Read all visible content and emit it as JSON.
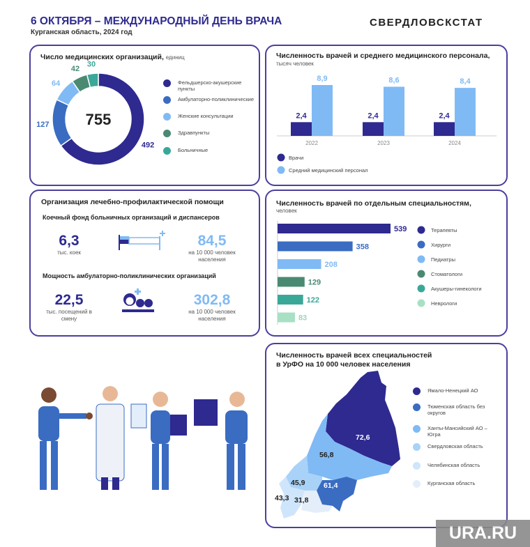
{
  "header": {
    "title": "6 ОКТЯБРЯ – МЕЖДУНАРОДНЫЙ ДЕНЬ ВРАЧА",
    "subtitle": "Курганская область, 2024 год",
    "logo": "СВЕРДЛОВСКСТАТ"
  },
  "orgs": {
    "title": "Число медицинских организаций,",
    "unit": "единиц",
    "total": "755",
    "chart_data": {
      "type": "pie",
      "title": "Число медицинских организаций, единиц",
      "categories": [
        "Фельдшерско-акушерские пункты",
        "Амбулаторно-поликлинические",
        "Женские консультации",
        "Здравпункты",
        "Больничные"
      ],
      "values": [
        492,
        127,
        64,
        42,
        30
      ],
      "labels": [
        "492",
        "127",
        "64",
        "42",
        "30"
      ],
      "colors": [
        "#2e2a8f",
        "#3a6cc2",
        "#80baf5",
        "#4a8a72",
        "#3aa898"
      ]
    }
  },
  "staff": {
    "title": "Численность врачей и среднего медицинского персонала,",
    "unit": "тысяч человек",
    "chart_data": {
      "type": "bar",
      "categories": [
        "2022",
        "2023",
        "2024"
      ],
      "series": [
        {
          "name": "Врачи",
          "values": [
            2.4,
            2.4,
            2.4
          ],
          "labels": [
            "2,4",
            "2,4",
            "2,4"
          ],
          "color": "#2e2a8f"
        },
        {
          "name": "Средний медицинский персонал",
          "values": [
            8.9,
            8.6,
            8.4
          ],
          "labels": [
            "8,9",
            "8,6",
            "8,4"
          ],
          "color": "#80baf5"
        }
      ]
    }
  },
  "care": {
    "title": "Организация лечебно-профилактической помощи",
    "beds_title": "Коечный фонд больничных организаций и диспансеров",
    "beds_value": "6,3",
    "beds_caption": "тыс. коек",
    "beds_rate": "84,5",
    "beds_rate_caption": "на 10 000 человек населения",
    "amb_title": "Мощность амбулаторно-поликлинических организаций",
    "amb_value": "22,5",
    "amb_caption": "тыс. посещений в смену",
    "amb_rate": "302,8",
    "amb_rate_caption": "на 10 000 человек населения"
  },
  "spec": {
    "title": "Численность врачей по отдельным специальностям,",
    "unit": "человек",
    "chart_data": {
      "type": "bar",
      "orientation": "horizontal",
      "categories": [
        "Терапевты",
        "Хирурги",
        "Педиатры",
        "Стоматологи",
        "Акушеры-гинекологи",
        "Неврологи"
      ],
      "values": [
        539,
        358,
        208,
        129,
        122,
        83
      ],
      "colors": [
        "#2e2a8f",
        "#3a6cc2",
        "#80baf5",
        "#4a8a72",
        "#3aa898",
        "#a8e0c4"
      ]
    }
  },
  "map": {
    "title": "Численность врачей всех специальностей",
    "title2": "в УрФО на 10 000 человек населения",
    "regions": [
      {
        "name": "Ямало-Ненецкий АО",
        "value": "72,6",
        "color": "#2e2a8f"
      },
      {
        "name": "Тюменская область без округов",
        "value": "61,4",
        "color": "#3a6cc2"
      },
      {
        "name": "Ханты-Мансийский АО – Югра",
        "value": "56,8",
        "color": "#80baf5"
      },
      {
        "name": "Свердловская область",
        "value": "45,9",
        "color": "#a8d2f8"
      },
      {
        "name": "Челябинская область",
        "value": "43,3",
        "color": "#cfe5fb"
      },
      {
        "name": "Курганская область",
        "value": "31,8",
        "color": "#e4eefa"
      }
    ]
  },
  "watermark": "URA.RU"
}
